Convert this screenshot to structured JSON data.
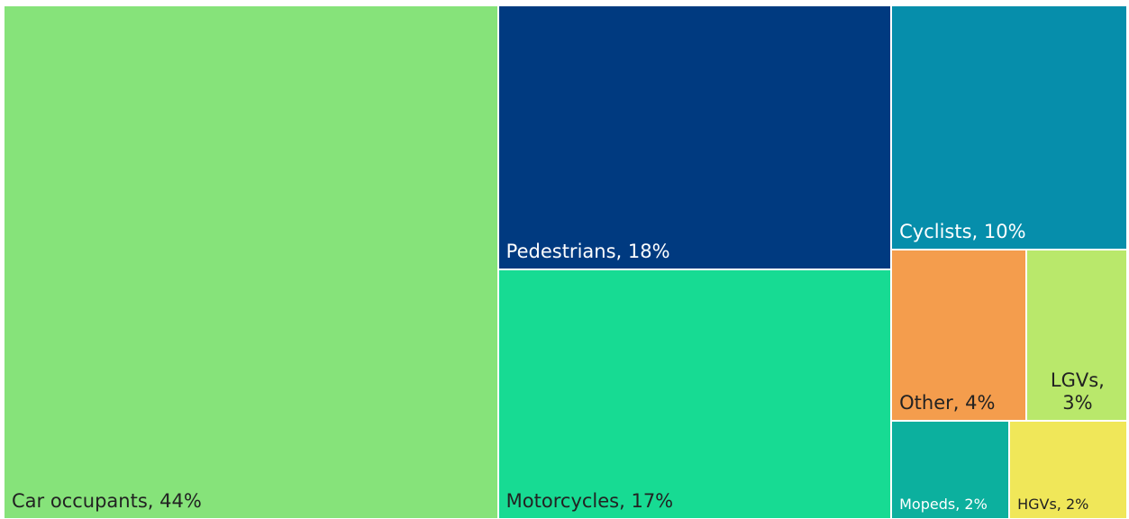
{
  "chart_data": {
    "type": "treemap",
    "labels": [
      "Car occupants, 44%",
      "Pedestrians, 18%",
      "Motorcycles, 17%",
      "Cyclists, 10%",
      "Other, 4%",
      "LGVs, 3%",
      "Mopeds, 2%",
      "HGVs, 2%"
    ],
    "values": [
      44,
      18,
      17,
      10,
      4,
      3,
      2,
      2
    ],
    "colors": [
      "#86e37a",
      "#003a80",
      "#17db93",
      "#068eab",
      "#f49d4d",
      "#b9e86b",
      "#0cb09e",
      "#f0e759"
    ]
  }
}
